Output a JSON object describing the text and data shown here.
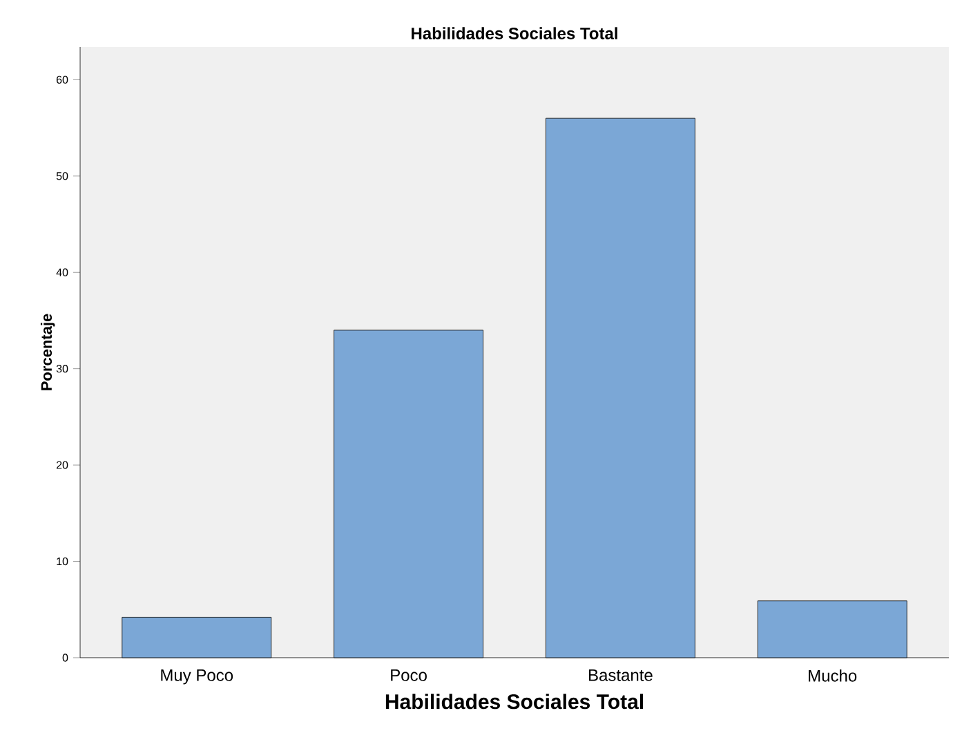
{
  "chart_data": {
    "type": "bar",
    "title": "Habilidades Sociales Total",
    "xlabel": "Habilidades Sociales Total",
    "ylabel": "Porcentaje",
    "categories": [
      "Muy Poco",
      "Poco",
      "Bastante",
      "Mucho"
    ],
    "values": [
      4.2,
      34,
      56,
      5.9
    ],
    "color": "#7ba7d6",
    "ylim": [
      0,
      63.4
    ],
    "yticks": [
      0,
      10,
      20,
      30,
      40,
      50,
      60
    ],
    "grid": false
  }
}
